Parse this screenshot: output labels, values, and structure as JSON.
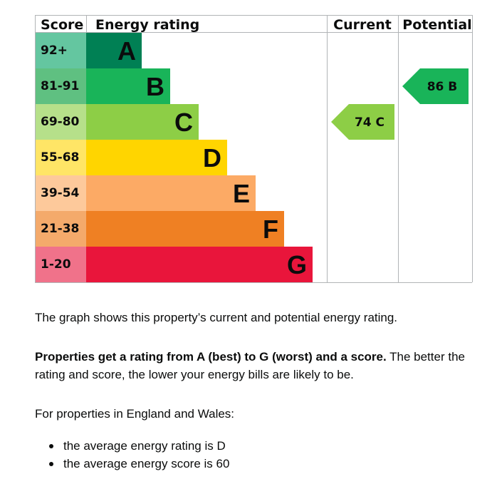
{
  "chart_data": {
    "type": "bar",
    "headers": {
      "score": "Score",
      "rating": "Energy rating",
      "current": "Current",
      "potential": "Potential"
    },
    "bands": [
      {
        "letter": "A",
        "range": "92+",
        "color": "#008054",
        "label_bg": "#64c6a0"
      },
      {
        "letter": "B",
        "range": "81-91",
        "color": "#19b459",
        "label_bg": "#5fc081"
      },
      {
        "letter": "C",
        "range": "69-80",
        "color": "#8dce46",
        "label_bg": "#b6e08a"
      },
      {
        "letter": "D",
        "range": "55-68",
        "color": "#ffd500",
        "label_bg": "#ffe566"
      },
      {
        "letter": "E",
        "range": "39-54",
        "color": "#fcaa65",
        "label_bg": "#fdc99b"
      },
      {
        "letter": "F",
        "range": "21-38",
        "color": "#ef8023",
        "label_bg": "#f4aa6b"
      },
      {
        "letter": "G",
        "range": "1-20",
        "color": "#e9153b",
        "label_bg": "#f0728a"
      }
    ],
    "current": {
      "score": 74,
      "letter": "C",
      "label": "74  C",
      "band": 2
    },
    "potential": {
      "score": 86,
      "letter": "B",
      "label": "86  B",
      "band": 1
    }
  },
  "text": {
    "p1": "The graph shows this property’s current and potential energy rating.",
    "p2_bold": "Properties get a rating from A (best) to G (worst) and a score.",
    "p2_rest": " The better the rating and score, the lower your energy bills are likely to be.",
    "p3": "For properties in England and Wales:",
    "bullets": [
      "the average energy rating is D",
      "the average energy score is 60"
    ]
  }
}
